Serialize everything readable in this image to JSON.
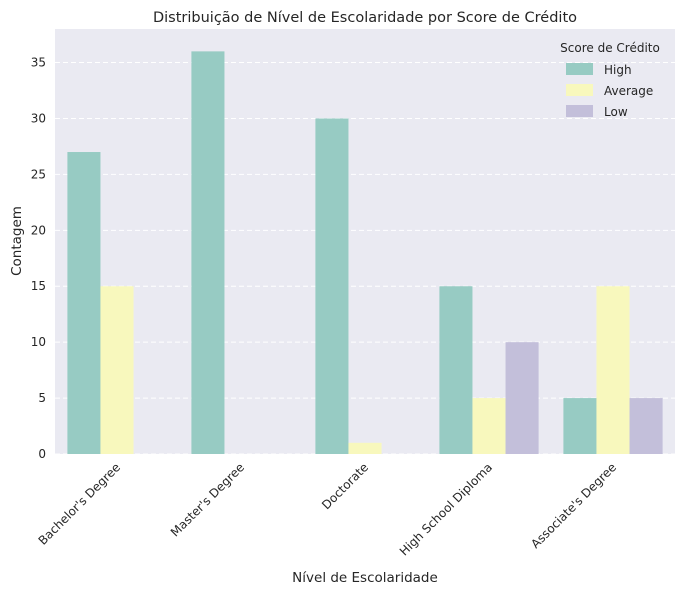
{
  "chart_data": {
    "type": "bar",
    "title": "Distribuição de Nível de Escolaridade por Score de Crédito",
    "xlabel": "Nível de Escolaridade",
    "ylabel": "Contagem",
    "ylim": [
      0,
      38
    ],
    "yticks": [
      "0",
      "5",
      "10",
      "15",
      "20",
      "25",
      "30",
      "35"
    ],
    "grid": "horizontal-dashed",
    "legend_title": "Score de Crédito",
    "legend_position": "top-right",
    "categories": [
      "Bachelor's Degree",
      "Master's Degree",
      "Doctorate",
      "High School Diploma",
      "Associate's Degree"
    ],
    "series": [
      {
        "name": "High",
        "color": "#97cbc3",
        "values": [
          27,
          36,
          30,
          15,
          5
        ]
      },
      {
        "name": "Average",
        "color": "#f8f8bd",
        "values": [
          15,
          0,
          1,
          5,
          15
        ]
      },
      {
        "name": "Low",
        "color": "#c3bfda",
        "values": [
          0,
          0,
          0,
          10,
          5
        ]
      }
    ]
  },
  "colors": {
    "plot_background": "#eaeaf2",
    "grid": "#ffffff"
  }
}
